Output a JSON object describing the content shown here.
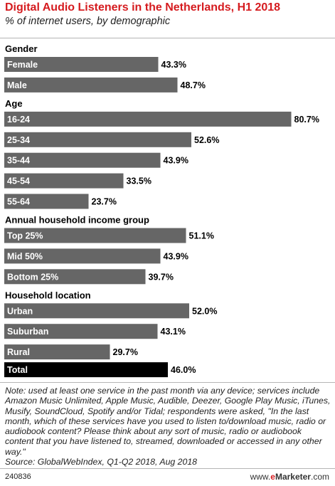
{
  "header": {
    "title": "Digital Audio Listeners in the Netherlands, H1 2018",
    "subtitle": "% of internet users, by demographic"
  },
  "colors": {
    "bar": "#666666",
    "total_bar": "#000000",
    "title": "#d51b1f",
    "rule": "#b5b5b5"
  },
  "chart_data": {
    "type": "bar",
    "orientation": "horizontal",
    "title": "Digital Audio Listeners in the Netherlands, H1 2018",
    "subtitle": "% of internet users, by demographic",
    "value_suffix": "%",
    "xlim": [
      0,
      100
    ],
    "grid": false,
    "groups": [
      {
        "name": "Gender",
        "items": [
          {
            "label": "Female",
            "value": 43.3,
            "value_label": "43.3%"
          },
          {
            "label": "Male",
            "value": 48.7,
            "value_label": "48.7%"
          }
        ]
      },
      {
        "name": "Age",
        "items": [
          {
            "label": "16-24",
            "value": 80.7,
            "value_label": "80.7%"
          },
          {
            "label": "25-34",
            "value": 52.6,
            "value_label": "52.6%"
          },
          {
            "label": "35-44",
            "value": 43.9,
            "value_label": "43.9%"
          },
          {
            "label": "45-54",
            "value": 33.5,
            "value_label": "33.5%"
          },
          {
            "label": "55-64",
            "value": 23.7,
            "value_label": "23.7%"
          }
        ]
      },
      {
        "name": "Annual household income group",
        "items": [
          {
            "label": "Top 25%",
            "value": 51.1,
            "value_label": "51.1%"
          },
          {
            "label": "Mid 50%",
            "value": 43.9,
            "value_label": "43.9%"
          },
          {
            "label": "Bottom 25%",
            "value": 39.7,
            "value_label": "39.7%"
          }
        ]
      },
      {
        "name": "Household location",
        "items": [
          {
            "label": "Urban",
            "value": 52.0,
            "value_label": "52.0%"
          },
          {
            "label": "Suburban",
            "value": 43.1,
            "value_label": "43.1%"
          },
          {
            "label": "Rural",
            "value": 29.7,
            "value_label": "29.7%"
          }
        ]
      },
      {
        "name": "",
        "items": [
          {
            "label": "Total",
            "value": 46.0,
            "value_label": "46.0%",
            "total": true
          }
        ]
      }
    ]
  },
  "footer": {
    "note": "Note: used at least one service in the past month via any device; services include Amazon Music Unlimited, Apple Music, Audible, Deezer, Google Play Music, iTunes, Musify, SoundCloud, Spotify and/or Tidal; respondents were asked, \"In the last month, which of these services have you used to listen to/download music, radio or audiobook content? Please think about any sort of music, radio or audiobook content that you have listened to, streamed, downloaded or accessed in any other way.\"",
    "source": "Source: GlobalWebIndex, Q1-Q2 2018, Aug 2018",
    "chart_id": "240836",
    "brand_prefix": "www.",
    "brand_e": "e",
    "brand_name": "Marketer",
    "brand_suffix": ".com"
  }
}
